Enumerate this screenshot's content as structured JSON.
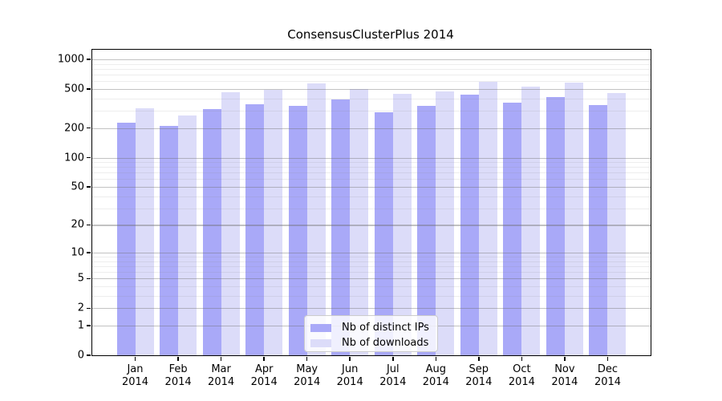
{
  "figure": {
    "title": "ConsensusClusterPlus 2014"
  },
  "chart_data": {
    "type": "bar",
    "title": "ConsensusClusterPlus 2014",
    "categories": [
      "Jan 2014",
      "Feb 2014",
      "Mar 2014",
      "Apr 2014",
      "May 2014",
      "Jun 2014",
      "Jul 2014",
      "Aug 2014",
      "Sep 2014",
      "Oct 2014",
      "Nov 2014",
      "Dec 2014"
    ],
    "x_tick_months": [
      "Jan",
      "Feb",
      "Mar",
      "Apr",
      "May",
      "Jun",
      "Jul",
      "Aug",
      "Sep",
      "Oct",
      "Nov",
      "Dec"
    ],
    "x_tick_year": "2014",
    "series": [
      {
        "name": "Nb of distinct IPs",
        "color": "#a9a9f8",
        "values": [
          225,
          210,
          315,
          350,
          340,
          390,
          290,
          340,
          440,
          360,
          415,
          345
        ]
      },
      {
        "name": "Nb of downloads",
        "color": "#dcdcf9",
        "values": [
          320,
          270,
          460,
          490,
          565,
          500,
          450,
          475,
          590,
          530,
          580,
          455
        ]
      }
    ],
    "yscale": "log1p",
    "ylim": [
      0,
      1250
    ],
    "yticks": [
      0,
      1,
      2,
      5,
      10,
      20,
      50,
      100,
      200,
      500,
      1000
    ],
    "minor_gridlines": [
      3,
      4,
      6,
      7,
      8,
      9,
      30,
      40,
      60,
      70,
      80,
      90,
      300,
      400,
      600,
      700,
      800,
      900
    ],
    "grid": true,
    "legend_position": "lower-center",
    "xlabel": "",
    "ylabel": ""
  },
  "legend": {
    "items": [
      {
        "label": "Nb of distinct IPs",
        "color": "#a9a9f8"
      },
      {
        "label": "Nb of downloads",
        "color": "#dcdcf9"
      }
    ]
  },
  "colors": {
    "bar_distinct_ips": "#a9a9f8",
    "bar_downloads": "#dcdcf9",
    "background": "#ffffff",
    "axis": "#000000",
    "grid_major": "#c8c8c8",
    "grid_minor": "#ebebeb",
    "legend_border": "#cccccc"
  }
}
